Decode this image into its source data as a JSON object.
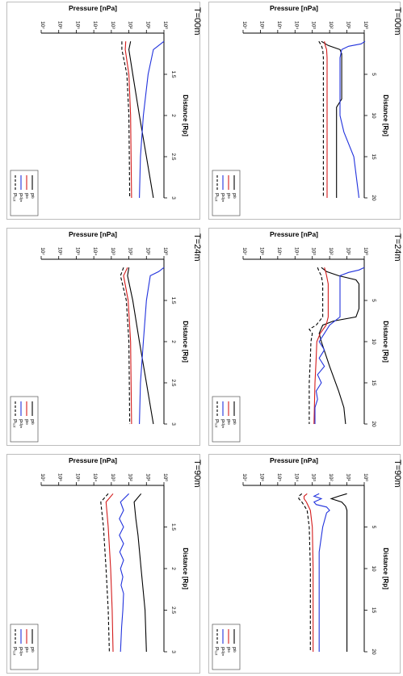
{
  "figure": {
    "ylabel": "Pressure [nPa]",
    "xlabel": "Distance [Rp]",
    "ytick_labels": [
      "10⁰",
      "10¹",
      "10²",
      "10³",
      "10⁴",
      "10⁵",
      "10⁶",
      "10⁷"
    ],
    "legend": [
      "Pᵇ",
      "Pᵉ",
      "Pᵈʸⁿ",
      "Pₜₒₜ"
    ],
    "colors": {
      "pb": "#000000",
      "pe": "#d41c1c",
      "pdyn": "#2233dd",
      "ptot": "#000000",
      "frame": "#bdbdbd"
    }
  },
  "chart_data": [
    {
      "type": "line",
      "title": "T=00m",
      "xlabel": "Distance [Rp]",
      "ylabel": "Pressure [nPa]",
      "xlim": [
        0,
        20
      ],
      "xticks": [
        5,
        10,
        15,
        20
      ],
      "ylim": [
        1,
        10000000
      ],
      "yscale": "log",
      "series": [
        {
          "name": "Pᵇ",
          "color": "#000000",
          "dash": false,
          "x": [
            1,
            1.5,
            2,
            2.5,
            3,
            4,
            8,
            9,
            10,
            20
          ],
          "y": [
            300,
            120,
            25,
            20,
            20,
            20,
            20,
            40,
            40,
            40
          ]
        },
        {
          "name": "Pᵉ",
          "color": "#d41c1c",
          "dash": false,
          "x": [
            1,
            1.5,
            2,
            3,
            20
          ],
          "y": [
            200,
            180,
            150,
            140,
            140
          ]
        },
        {
          "name": "Pᵈʸⁿ",
          "color": "#2233dd",
          "dash": false,
          "x": [
            1,
            1.3,
            1.6,
            2,
            3,
            5,
            10,
            12,
            15,
            20
          ],
          "y": [
            0.9,
            1.5,
            8,
            20,
            25,
            25,
            25,
            15,
            4,
            2
          ]
        },
        {
          "name": "Pₜₒₜ",
          "color": "#000000",
          "dash": true,
          "x": [
            1,
            1.5,
            2,
            3,
            20
          ],
          "y": [
            420,
            300,
            250,
            230,
            230
          ]
        }
      ]
    },
    {
      "type": "line",
      "title": "T=24m",
      "xlabel": "Distance [Rp]",
      "ylabel": "Pressure [nPa]",
      "xlim": [
        0,
        20
      ],
      "xticks": [
        5,
        10,
        15,
        20
      ],
      "ylim": [
        1,
        10000000
      ],
      "yscale": "log",
      "series": [
        {
          "name": "Pᵇ",
          "color": "#000000",
          "dash": false,
          "x": [
            1,
            1.5,
            2,
            2.5,
            3,
            4,
            6,
            7,
            7.5,
            8,
            9,
            10,
            13,
            16,
            18,
            20
          ],
          "y": [
            300,
            150,
            30,
            3,
            2,
            2,
            2,
            3,
            60,
            250,
            400,
            300,
            100,
            30,
            15,
            12
          ]
        },
        {
          "name": "Pᵉ",
          "color": "#d41c1c",
          "dash": false,
          "x": [
            1,
            1.5,
            2,
            3,
            7,
            8,
            9,
            10,
            12,
            15,
            20
          ],
          "y": [
            200,
            170,
            150,
            120,
            120,
            160,
            350,
            550,
            600,
            700,
            800
          ]
        },
        {
          "name": "Pᵈʸⁿ",
          "color": "#2233dd",
          "dash": false,
          "x": [
            1,
            1.3,
            1.6,
            2,
            3,
            5,
            7,
            8,
            9,
            10,
            11,
            12,
            13,
            14,
            15,
            16,
            17,
            18,
            20
          ],
          "y": [
            1,
            2,
            8,
            25,
            25,
            25,
            25,
            100,
            200,
            400,
            200,
            400,
            200,
            500,
            300,
            600,
            500,
            700,
            700
          ]
        },
        {
          "name": "Pₜₒₜ",
          "color": "#000000",
          "dash": true,
          "x": [
            1,
            1.5,
            2,
            3,
            7,
            8,
            8.5,
            9,
            10,
            12,
            15,
            20
          ],
          "y": [
            500,
            400,
            300,
            250,
            250,
            600,
            1500,
            1000,
            1200,
            1300,
            1500,
            1500
          ]
        }
      ]
    },
    {
      "type": "line",
      "title": "T=90m",
      "xlabel": "Distance [Rp]",
      "ylabel": "Pressure [nPa]",
      "xlim": [
        0,
        20
      ],
      "xticks": [
        5,
        10,
        15,
        20
      ],
      "ylim": [
        1,
        10000000
      ],
      "yscale": "log",
      "series": [
        {
          "name": "Pᵇ",
          "color": "#000000",
          "dash": false,
          "x": [
            1,
            1.3,
            1.6,
            2,
            2.5,
            3,
            4,
            6,
            10,
            20
          ],
          "y": [
            10,
            30,
            80,
            20,
            12,
            10,
            10,
            10,
            10,
            10
          ]
        },
        {
          "name": "Pᵉ",
          "color": "#d41c1c",
          "dash": false,
          "x": [
            1,
            1.3,
            1.6,
            2,
            3,
            5,
            10,
            20
          ],
          "y": [
            2000,
            3000,
            3000,
            2200,
            1300,
            1000,
            900,
            900
          ]
        },
        {
          "name": "Pᵈʸⁿ",
          "color": "#2233dd",
          "dash": false,
          "x": [
            1,
            1.3,
            1.6,
            2,
            2.3,
            2.6,
            3,
            3.3,
            5,
            8,
            10,
            20
          ],
          "y": [
            400,
            800,
            300,
            800,
            600,
            150,
            100,
            150,
            250,
            400,
            400,
            400
          ]
        },
        {
          "name": "Pₜₒₜ",
          "color": "#000000",
          "dash": true,
          "x": [
            1,
            1.3,
            1.6,
            2,
            3,
            5,
            10,
            20
          ],
          "y": [
            4000,
            6000,
            6000,
            4000,
            2000,
            1500,
            1300,
            1300
          ]
        }
      ]
    },
    {
      "type": "line",
      "title": "T=00m",
      "xlabel": "Distance [Rp]",
      "ylabel": "Pressure [nPa]",
      "xlim": [
        1,
        3
      ],
      "xticks": [
        1.5,
        2,
        2.5,
        3
      ],
      "ylim": [
        1,
        10000000
      ],
      "yscale": "log",
      "series": [
        {
          "name": "Pᵇ",
          "color": "#000000",
          "dash": false,
          "x": [
            1.1,
            1.2,
            1.5,
            2,
            2.5,
            3
          ],
          "y": [
            80,
            100,
            60,
            25,
            10,
            4
          ]
        },
        {
          "name": "Pᵉ",
          "color": "#d41c1c",
          "dash": false,
          "x": [
            1.1,
            1.2,
            1.5,
            2,
            3
          ],
          "y": [
            150,
            160,
            100,
            80,
            70
          ]
        },
        {
          "name": "Pᵈʸⁿ",
          "color": "#2233dd",
          "dash": false,
          "x": [
            1.1,
            1.15,
            1.2,
            1.5,
            2,
            2.5,
            3
          ],
          "y": [
            1,
            2,
            4,
            8,
            15,
            22,
            25
          ]
        },
        {
          "name": "Pₜₒₜ",
          "color": "#000000",
          "dash": true,
          "x": [
            1.1,
            1.2,
            1.5,
            2,
            3
          ],
          "y": [
            250,
            250,
            130,
            100,
            90
          ]
        }
      ]
    },
    {
      "type": "line",
      "title": "T=24m",
      "xlabel": "Distance [Rp]",
      "ylabel": "Pressure [nPa]",
      "xlim": [
        1,
        3
      ],
      "xticks": [
        1.5,
        2,
        2.5,
        3
      ],
      "ylim": [
        1,
        10000000
      ],
      "yscale": "log",
      "series": [
        {
          "name": "Pᵇ",
          "color": "#000000",
          "dash": false,
          "x": [
            1.1,
            1.2,
            1.5,
            2,
            2.5,
            3
          ],
          "y": [
            100,
            120,
            60,
            25,
            10,
            4
          ]
        },
        {
          "name": "Pᵉ",
          "color": "#d41c1c",
          "dash": false,
          "x": [
            1.1,
            1.2,
            1.5,
            2,
            3
          ],
          "y": [
            120,
            200,
            110,
            80,
            70
          ]
        },
        {
          "name": "Pᵈʸⁿ",
          "color": "#2233dd",
          "dash": false,
          "x": [
            1.1,
            1.15,
            1.2,
            1.5,
            2,
            2.5,
            3
          ],
          "y": [
            1,
            2,
            6,
            10,
            15,
            22,
            25
          ]
        },
        {
          "name": "Pₜₒₜ",
          "color": "#000000",
          "dash": true,
          "x": [
            1.1,
            1.2,
            1.5,
            2,
            3
          ],
          "y": [
            200,
            300,
            140,
            100,
            90
          ]
        }
      ]
    },
    {
      "type": "line",
      "title": "T=90m",
      "xlabel": "Distance [Rp]",
      "ylabel": "Pressure [nPa]",
      "xlim": [
        1,
        3
      ],
      "xticks": [
        1.5,
        2,
        2.5,
        3
      ],
      "ylim": [
        1,
        10000000
      ],
      "yscale": "log",
      "series": [
        {
          "name": "Pᵇ",
          "color": "#000000",
          "dash": false,
          "x": [
            1.1,
            1.2,
            1.4,
            1.6,
            2,
            2.5,
            3
          ],
          "y": [
            20,
            50,
            40,
            30,
            20,
            12,
            10
          ]
        },
        {
          "name": "Pᵉ",
          "color": "#d41c1c",
          "dash": false,
          "x": [
            1.1,
            1.2,
            1.5,
            2,
            2.5,
            3
          ],
          "y": [
            800,
            2000,
            1500,
            1100,
            900,
            800
          ]
        },
        {
          "name": "Pᵈʸⁿ",
          "color": "#2233dd",
          "dash": false,
          "x": [
            1.1,
            1.2,
            1.3,
            1.4,
            1.5,
            1.6,
            1.7,
            1.8,
            1.9,
            2,
            2.1,
            2.2,
            2.3,
            2.5,
            2.7,
            3
          ],
          "y": [
            100,
            300,
            200,
            350,
            200,
            350,
            200,
            330,
            200,
            300,
            220,
            280,
            200,
            220,
            260,
            300
          ]
        },
        {
          "name": "Pₜₒₜ",
          "color": "#000000",
          "dash": true,
          "x": [
            1.1,
            1.2,
            1.5,
            2,
            2.5,
            3
          ],
          "y": [
            1500,
            4000,
            2800,
            2000,
            1500,
            1300
          ]
        }
      ]
    }
  ]
}
